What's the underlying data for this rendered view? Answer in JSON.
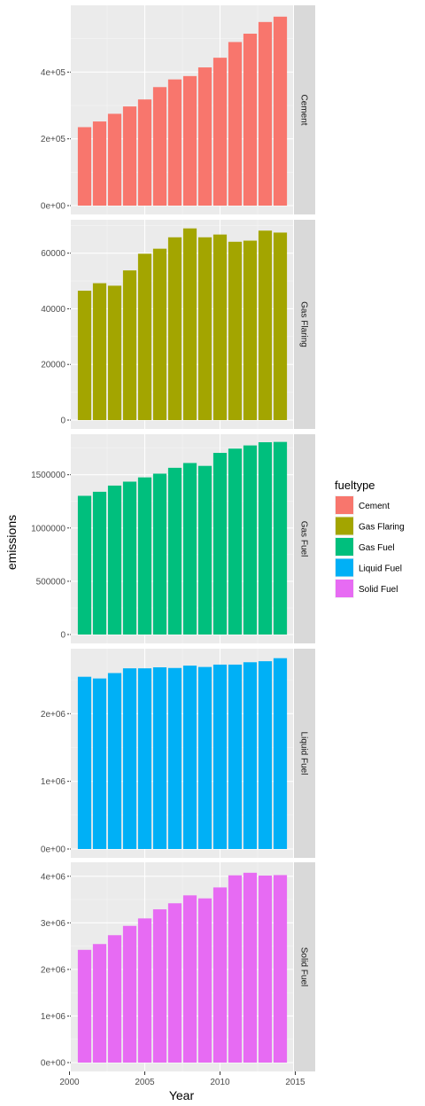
{
  "chart_data": {
    "type": "bar",
    "xlabel": "Year",
    "ylabel": "emissions",
    "x_ticks": [
      2000,
      2005,
      2010,
      2015
    ],
    "x_range": [
      2000,
      2015
    ],
    "years": [
      2001,
      2002,
      2003,
      2004,
      2005,
      2006,
      2007,
      2008,
      2009,
      2010,
      2011,
      2012,
      2013,
      2014
    ],
    "grid": true,
    "legend": {
      "title": "fueltype",
      "placement": "right",
      "entries": [
        {
          "label": "Cement",
          "color": "#F8766D"
        },
        {
          "label": "Gas Flaring",
          "color": "#A3A500"
        },
        {
          "label": "Gas Fuel",
          "color": "#00BF7D"
        },
        {
          "label": "Liquid Fuel",
          "color": "#00B0F6"
        },
        {
          "label": "Solid Fuel",
          "color": "#E76BF3"
        }
      ]
    },
    "panels": [
      {
        "name": "Cement",
        "color": "#F8766D",
        "ylim": [
          0,
          600000
        ],
        "y_ticks": [
          0,
          200000,
          400000
        ],
        "y_tick_labels": [
          "0e+00",
          "2e+05",
          "4e+05"
        ],
        "values": [
          235000,
          252000,
          275000,
          297000,
          318000,
          355000,
          378000,
          388000,
          414000,
          443000,
          490000,
          515000,
          550000,
          566000
        ]
      },
      {
        "name": "Gas Flaring",
        "color": "#A3A500",
        "ylim": [
          0,
          72000
        ],
        "y_ticks": [
          0,
          20000,
          40000,
          60000
        ],
        "y_tick_labels": [
          "0",
          "20000",
          "40000",
          "60000"
        ],
        "values": [
          46500,
          49200,
          48300,
          53800,
          59800,
          61600,
          65700,
          68900,
          65700,
          66700,
          64100,
          64500,
          68100,
          67400
        ]
      },
      {
        "name": "Gas Fuel",
        "color": "#00BF7D",
        "ylim": [
          0,
          1880000
        ],
        "y_ticks": [
          0,
          500000,
          1000000,
          1500000
        ],
        "y_tick_labels": [
          "0",
          "500000",
          "1000000",
          "1500000"
        ],
        "values": [
          1302000,
          1340000,
          1398000,
          1435000,
          1475000,
          1510000,
          1565000,
          1610000,
          1583000,
          1705000,
          1745000,
          1775000,
          1805000,
          1808000
        ]
      },
      {
        "name": "Liquid Fuel",
        "color": "#00B0F6",
        "ylim": [
          0,
          2960000
        ],
        "y_ticks": [
          0,
          1000000,
          2000000
        ],
        "y_tick_labels": [
          "0e+00",
          "1e+06",
          "2e+06"
        ],
        "values": [
          2545000,
          2520000,
          2600000,
          2670000,
          2670000,
          2685000,
          2675000,
          2710000,
          2690000,
          2725000,
          2725000,
          2760000,
          2775000,
          2820000
        ]
      },
      {
        "name": "Solid Fuel",
        "color": "#E76BF3",
        "ylim": [
          0,
          4300000
        ],
        "y_ticks": [
          0,
          1000000,
          2000000,
          3000000,
          4000000
        ],
        "y_tick_labels": [
          "0e+00",
          "1e+06",
          "2e+06",
          "3e+06",
          "4e+06"
        ],
        "values": [
          2420000,
          2545000,
          2735000,
          2935000,
          3095000,
          3290000,
          3420000,
          3590000,
          3525000,
          3760000,
          4020000,
          4075000,
          4015000,
          4025000
        ]
      }
    ]
  }
}
